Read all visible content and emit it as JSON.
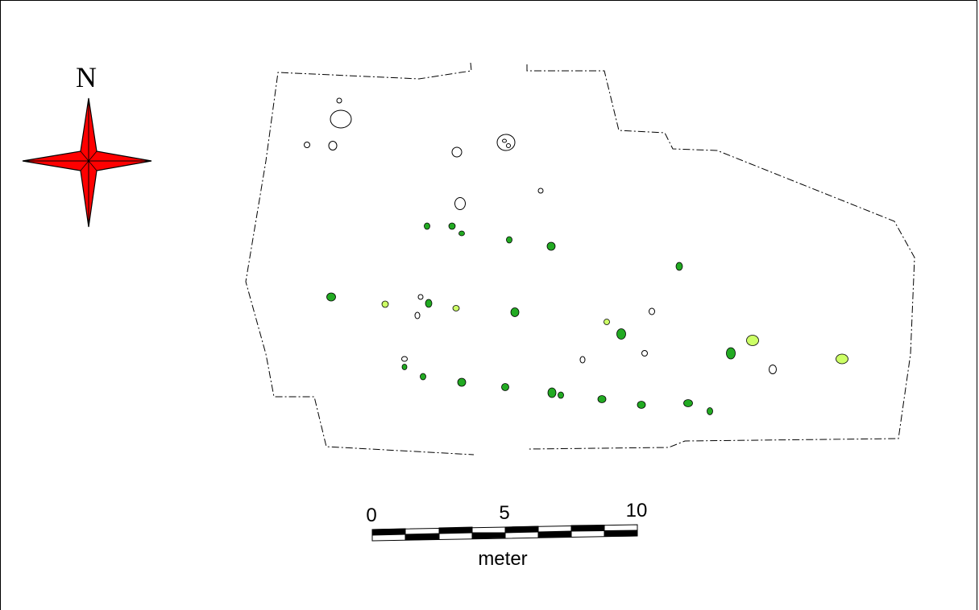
{
  "north_arrow": {
    "letter": "N",
    "icon": "compass-rose-icon",
    "color": "#ff0000"
  },
  "scale_bar": {
    "labels": [
      "0",
      "5",
      "10"
    ],
    "unit": "meter"
  },
  "legend_colors": {
    "outline": "#000000",
    "feature_dark": "#22aa22",
    "feature_light": "#ccff66",
    "feature_empty": "#ffffff"
  }
}
